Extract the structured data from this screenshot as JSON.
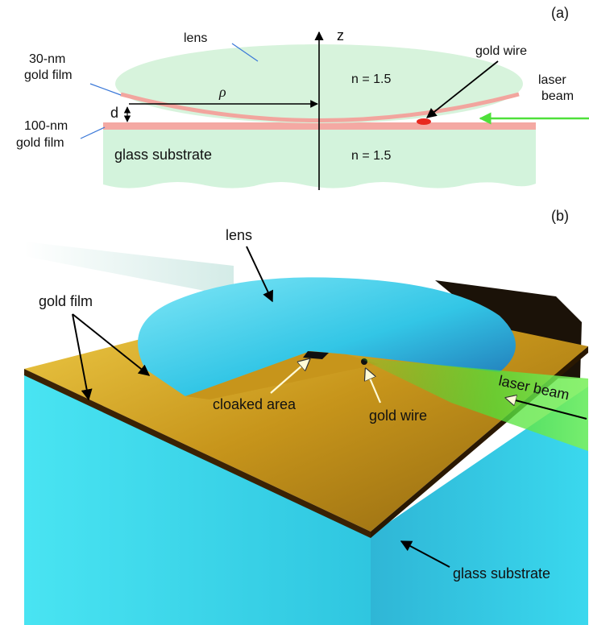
{
  "panel_a": {
    "tag": "(a)",
    "z_axis": "z",
    "lens": "lens",
    "film_30": [
      "30-nm",
      "gold film"
    ],
    "film_100": [
      "100-nm",
      "gold film"
    ],
    "d": "d",
    "rho": "ρ",
    "n_lens": "n = 1.5",
    "n_glass": "n = 1.5",
    "substrate": "glass substrate",
    "gold_wire": "gold wire",
    "laser": [
      "laser",
      "beam"
    ]
  },
  "panel_b": {
    "tag": "(b)",
    "lens": "lens",
    "gold_film": "gold film",
    "cloaked_area": "cloaked area",
    "gold_wire": "gold wire",
    "laser_beam": "laser beam",
    "substrate": "glass substrate"
  },
  "colors": {
    "lens_fill": "#d7f3dc",
    "film_pink": "#f4a9a3",
    "wire_red": "#e8281f",
    "laser_green": "#4ee03a",
    "lens_cyan": "#3cc8e8",
    "glass_cyan": "#35d8ec",
    "gold": "#c99a1a",
    "leader_blue": "#3a78d8"
  }
}
